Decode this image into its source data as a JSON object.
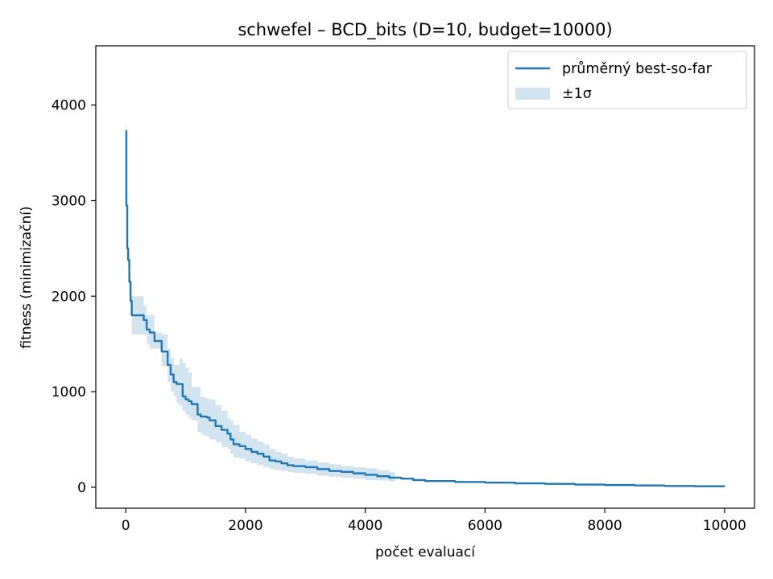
{
  "chart_data": {
    "type": "line",
    "title": "schwefel – BCD_bits (D=10, budget=10000)",
    "xlabel": "počet evaluací",
    "ylabel": "fitness (minimizační)",
    "xlim": [
      -500,
      10500
    ],
    "ylim": [
      -220,
      4620
    ],
    "xticks": [
      0,
      2000,
      4000,
      6000,
      8000,
      10000
    ],
    "yticks": [
      0,
      1000,
      2000,
      3000,
      4000
    ],
    "grid": false,
    "legend_position": "top-right",
    "colors": {
      "line": "#1f77b4",
      "band": "#1f77b4",
      "band_opacity": 0.2
    },
    "series": [
      {
        "name": "průměrný best-so-far",
        "x": [
          0,
          10,
          25,
          40,
          60,
          80,
          100,
          120,
          150,
          200,
          300,
          350,
          400,
          480,
          500,
          600,
          700,
          750,
          800,
          850,
          900,
          950,
          1000,
          1050,
          1100,
          1200,
          1250,
          1300,
          1350,
          1400,
          1500,
          1600,
          1700,
          1750,
          1800,
          1900,
          2000,
          2100,
          2200,
          2300,
          2400,
          2500,
          2600,
          2700,
          2800,
          3000,
          3200,
          3400,
          3600,
          3800,
          4000,
          4200,
          4400,
          4600,
          4800,
          5000,
          5500,
          6000,
          6500,
          7000,
          7500,
          8000,
          8500,
          9000,
          9500,
          10000
        ],
        "y": [
          3730,
          2950,
          2500,
          2380,
          2150,
          1950,
          1800,
          1800,
          1800,
          1800,
          1750,
          1650,
          1620,
          1530,
          1530,
          1420,
          1280,
          1180,
          1100,
          1080,
          1080,
          950,
          920,
          900,
          870,
          760,
          740,
          740,
          730,
          700,
          640,
          600,
          560,
          500,
          450,
          430,
          400,
          370,
          350,
          320,
          280,
          270,
          250,
          230,
          220,
          210,
          190,
          170,
          160,
          145,
          130,
          115,
          100,
          90,
          75,
          65,
          55,
          48,
          40,
          35,
          28,
          23,
          18,
          13,
          10,
          8
        ]
      }
    ],
    "band": {
      "name": "±1σ",
      "x": [
        0,
        10,
        25,
        40,
        60,
        80,
        100,
        150,
        200,
        300,
        350,
        400,
        480,
        500,
        600,
        700,
        750,
        800,
        850,
        900,
        950,
        1000,
        1050,
        1100,
        1200,
        1250,
        1300,
        1350,
        1400,
        1500,
        1600,
        1700,
        1750,
        1800,
        1900,
        2000,
        2100,
        2200,
        2300,
        2400,
        2500,
        2600,
        2700,
        2800,
        3000,
        3200,
        3400,
        3600,
        3800,
        4000,
        4200,
        4400,
        4500,
        4600,
        4800,
        5000,
        5500,
        6000,
        6500,
        7000,
        7500,
        8000,
        8500,
        9000,
        9500,
        10000
      ],
      "lower": [
        3650,
        2850,
        2400,
        2300,
        2050,
        1850,
        1600,
        1600,
        1600,
        1600,
        1500,
        1450,
        1450,
        1450,
        1270,
        1100,
        1000,
        950,
        880,
        850,
        800,
        760,
        720,
        700,
        580,
        560,
        540,
        530,
        500,
        470,
        420,
        400,
        350,
        310,
        300,
        270,
        250,
        230,
        210,
        190,
        180,
        170,
        160,
        150,
        140,
        120,
        110,
        100,
        90,
        75,
        70,
        60,
        90,
        85,
        70,
        60,
        50,
        45,
        38,
        33,
        26,
        21,
        16,
        12,
        9,
        7
      ],
      "upper": [
        3800,
        3050,
        2600,
        2460,
        2250,
        2050,
        2000,
        2000,
        2000,
        1900,
        1800,
        1800,
        1620,
        1620,
        1600,
        1450,
        1350,
        1280,
        1280,
        1350,
        1300,
        1250,
        1200,
        1050,
        1050,
        950,
        940,
        930,
        920,
        860,
        800,
        720,
        700,
        650,
        580,
        550,
        510,
        480,
        450,
        400,
        370,
        350,
        320,
        300,
        280,
        260,
        240,
        220,
        210,
        200,
        180,
        160,
        110,
        95,
        80,
        70,
        60,
        51,
        42,
        37,
        30,
        25,
        20,
        14,
        11,
        9
      ]
    }
  }
}
